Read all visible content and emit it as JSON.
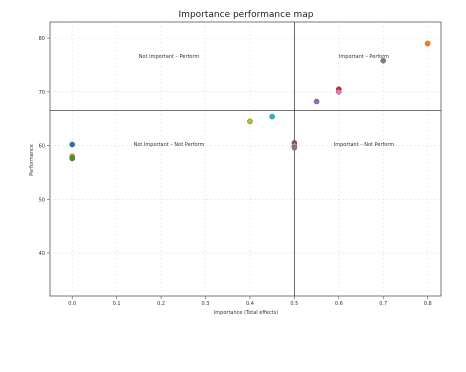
{
  "chart_data": {
    "type": "scatter",
    "title": "Importance performance map",
    "xlabel": "Importance (Total effects)",
    "ylabel": "Performance",
    "xlim": [
      -0.05,
      0.83
    ],
    "ylim": [
      32,
      83
    ],
    "x_ticks": [
      "0.0",
      "0.1",
      "0.2",
      "0.3",
      "0.4",
      "0.5",
      "0.6",
      "0.7",
      "0.8"
    ],
    "y_ticks": [
      "40",
      "50",
      "60",
      "70",
      "80"
    ],
    "grid": true,
    "quadrant_lines": {
      "x": 0.5,
      "y": 66.5
    },
    "quadrant_labels": {
      "top_left": "Not Important – Perform",
      "top_right": "Important – Perform",
      "bottom_left": "Not Important – Not Perform",
      "bottom_right": "Important – Not Perform"
    },
    "points": [
      {
        "x": 0.0,
        "y": 60.2,
        "color": "#1f77b4"
      },
      {
        "x": 0.0,
        "y": 58.0,
        "color": "#ff7f0e"
      },
      {
        "x": 0.0,
        "y": 57.6,
        "color": "#2ca02c"
      },
      {
        "x": 0.4,
        "y": 64.5,
        "color": "#bcbd22"
      },
      {
        "x": 0.45,
        "y": 65.4,
        "color": "#17becf"
      },
      {
        "x": 0.5,
        "y": 60.5,
        "color": "#8c564b"
      },
      {
        "x": 0.5,
        "y": 60.0,
        "color": "#e377c2"
      },
      {
        "x": 0.5,
        "y": 59.6,
        "color": "#7f7f7f"
      },
      {
        "x": 0.55,
        "y": 68.2,
        "color": "#9467bd"
      },
      {
        "x": 0.6,
        "y": 70.5,
        "color": "#d62728"
      },
      {
        "x": 0.6,
        "y": 70.0,
        "color": "#e377c2"
      },
      {
        "x": 0.7,
        "y": 75.8,
        "color": "#7f7f7f"
      },
      {
        "x": 0.8,
        "y": 79.0,
        "color": "#ff7f0e"
      }
    ]
  },
  "colors": {
    "legend_text": "#c85a2a"
  }
}
